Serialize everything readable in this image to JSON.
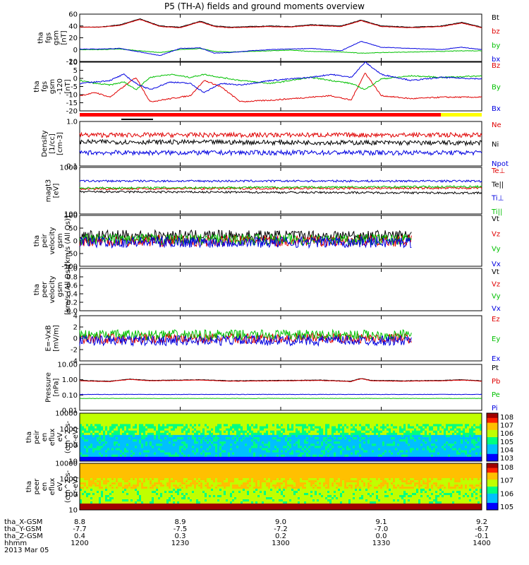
{
  "title": "P5 (TH-A) fields and ground moments overview",
  "date_label": "2013 Mar 05",
  "chart_data": [
    {
      "id": "fgs_gsm",
      "type": "line",
      "ylabel": [
        "tha",
        "fgs",
        "gsm",
        "[nT]"
      ],
      "ylim": [
        -20,
        60
      ],
      "yticks": [
        "60",
        "40",
        "20",
        "0",
        "-20"
      ],
      "series": [
        {
          "name": "Bt",
          "color": "#000000",
          "x": [
            12.0,
            12.1,
            12.2,
            12.3,
            12.4,
            12.5,
            12.6,
            12.67,
            12.75,
            12.85,
            12.95,
            13.05,
            13.15,
            13.3,
            13.4,
            13.5,
            13.65,
            13.8,
            13.9,
            14.0
          ],
          "y": [
            38,
            38,
            42,
            52,
            40,
            38,
            48,
            40,
            38,
            39,
            40,
            39,
            42,
            40,
            50,
            40,
            38,
            40,
            46,
            38
          ]
        },
        {
          "name": "bz",
          "color": "#e00000",
          "x": [
            12.0,
            12.1,
            12.2,
            12.3,
            12.4,
            12.5,
            12.6,
            12.67,
            12.75,
            12.85,
            12.95,
            13.05,
            13.15,
            13.3,
            13.4,
            13.5,
            13.65,
            13.8,
            13.9,
            14.0
          ],
          "y": [
            38,
            38,
            41,
            51,
            39,
            37,
            47,
            39,
            37,
            38,
            39,
            38,
            41,
            39,
            49,
            39,
            37,
            39,
            45,
            37
          ]
        },
        {
          "name": "by",
          "color": "#00c000",
          "x": [
            12.0,
            12.1,
            12.2,
            12.3,
            12.4,
            12.5,
            12.6,
            12.67,
            12.75,
            12.85,
            12.95,
            13.05,
            13.15,
            13.3,
            13.4,
            13.5,
            13.65,
            13.8,
            13.9,
            14.0
          ],
          "y": [
            0,
            0,
            1,
            -2,
            -5,
            0,
            2,
            -3,
            -4,
            -3,
            -2,
            -1,
            -3,
            -4,
            -6,
            -5,
            -4,
            -3,
            -2,
            -2
          ]
        },
        {
          "name": "bx",
          "color": "#0000e0",
          "x": [
            12.0,
            12.1,
            12.2,
            12.3,
            12.4,
            12.5,
            12.6,
            12.67,
            12.75,
            12.85,
            12.95,
            13.05,
            13.15,
            13.3,
            13.4,
            13.5,
            13.65,
            13.8,
            13.9,
            14.0
          ],
          "y": [
            1,
            1,
            2,
            -4,
            -10,
            2,
            3,
            -6,
            -5,
            -2,
            0,
            1,
            2,
            -2,
            14,
            4,
            2,
            0,
            4,
            0
          ]
        }
      ]
    },
    {
      "id": "fgs_gse",
      "type": "line",
      "ylabel": [
        "tha",
        "fgs",
        "gsm",
        "-120",
        "[nT]"
      ],
      "ylim": [
        -20,
        12
      ],
      "yticks": [
        "10",
        "5",
        "0",
        "-5",
        "-10",
        "-15",
        "-20"
      ],
      "series": [
        {
          "name": "Bz",
          "color": "#e00000",
          "x": [
            12.0,
            12.08,
            12.15,
            12.22,
            12.28,
            12.35,
            12.45,
            12.55,
            12.62,
            12.7,
            12.8,
            12.95,
            13.05,
            13.15,
            13.25,
            13.35,
            13.42,
            13.5,
            13.65,
            13.8,
            14.0
          ],
          "y": [
            -10,
            -8,
            -11,
            -4,
            2,
            -14,
            -12,
            -10,
            0,
            -4,
            -14,
            -13,
            -12,
            -11,
            -10,
            -13,
            5,
            -10,
            -12,
            -11,
            -11
          ]
        },
        {
          "name": "By",
          "color": "#00c000",
          "x": [
            12.0,
            12.08,
            12.15,
            12.22,
            12.28,
            12.35,
            12.45,
            12.55,
            12.62,
            12.7,
            12.8,
            12.95,
            13.05,
            13.15,
            13.25,
            13.35,
            13.42,
            13.5,
            13.65,
            13.8,
            14.0
          ],
          "y": [
            0,
            -2,
            -3,
            -1,
            -6,
            2,
            4,
            2,
            4,
            2,
            0,
            -2,
            0,
            2,
            0,
            -2,
            -6,
            1,
            3,
            2,
            3
          ]
        },
        {
          "name": "Bx",
          "color": "#0000e0",
          "x": [
            12.0,
            12.08,
            12.15,
            12.22,
            12.28,
            12.35,
            12.45,
            12.55,
            12.62,
            12.7,
            12.8,
            12.95,
            13.05,
            13.15,
            13.25,
            13.35,
            13.42,
            13.5,
            13.65,
            13.8,
            14.0
          ],
          "y": [
            -2,
            -1,
            0,
            4,
            -2,
            -6,
            -1,
            -2,
            -8,
            -2,
            -3,
            0,
            1,
            2,
            4,
            2,
            12,
            4,
            0,
            2,
            1
          ]
        }
      ]
    },
    {
      "id": "density",
      "type": "line",
      "ylabel": [
        "Density",
        "[1/cc]",
        "[cm-3]"
      ],
      "ylim": [
        0.1,
        1.0
      ],
      "log": true,
      "yticks": [
        "1.0",
        "0.1"
      ],
      "series": [
        {
          "name": "Ne",
          "color": "#e00000",
          "x": [
            12.0,
            14.0
          ],
          "y": [
            0.5,
            0.5
          ]
        },
        {
          "name": "Ni",
          "color": "#000000",
          "x": [
            12.0,
            14.0
          ],
          "y": [
            0.35,
            0.33
          ]
        },
        {
          "name": "Npot",
          "color": "#0000e0",
          "x": [
            12.0,
            14.0
          ],
          "y": [
            0.2,
            0.2
          ]
        }
      ]
    },
    {
      "id": "temp",
      "type": "line",
      "ylabel": [
        "magt3",
        "[eV]"
      ],
      "ylim": [
        100,
        10000
      ],
      "log": true,
      "yticks": [
        "1000",
        "100"
      ],
      "series": [
        {
          "name": "Te⊥",
          "color": "#e00000",
          "x": [
            12.0,
            14.0
          ],
          "y": [
            1200,
            1300
          ]
        },
        {
          "name": "Te||",
          "color": "#000000",
          "x": [
            12.0,
            14.0
          ],
          "y": [
            900,
            800
          ]
        },
        {
          "name": "Ti⊥",
          "color": "#0000e0",
          "x": [
            12.0,
            14.0
          ],
          "y": [
            2600,
            2600
          ]
        },
        {
          "name": "Ti||",
          "color": "#00c000",
          "x": [
            12.0,
            14.0
          ],
          "y": [
            1300,
            1500
          ]
        }
      ]
    },
    {
      "id": "peir_vel",
      "type": "line",
      "ylabel": [
        "tha",
        "peir",
        "velocity",
        "gsm",
        "[km/s (All Qs)]"
      ],
      "ylim": [
        -100,
        100
      ],
      "yticks": [
        "100",
        "50",
        "0",
        "-50",
        "-100"
      ],
      "series": [
        {
          "name": "Vt",
          "color": "#000000",
          "x": [
            12.0,
            13.65
          ],
          "y": [
            20,
            20
          ]
        },
        {
          "name": "Vz",
          "color": "#e00000",
          "x": [
            12.0,
            13.65
          ],
          "y": [
            0,
            0
          ]
        },
        {
          "name": "Vy",
          "color": "#00c000",
          "x": [
            12.0,
            13.65
          ],
          "y": [
            5,
            5
          ]
        },
        {
          "name": "Vx",
          "color": "#0000e0",
          "x": [
            12.0,
            13.65
          ],
          "y": [
            -5,
            -5
          ]
        }
      ]
    },
    {
      "id": "peer_vel",
      "type": "line",
      "ylabel": [
        "tha",
        "peer",
        "velocity",
        "gsm",
        "[km/s (All Qs)]"
      ],
      "ylim": [
        0,
        1
      ],
      "yticks": [
        "1.0",
        "0.8",
        "0.6",
        "0.4",
        "0.2",
        "0.0"
      ],
      "series": [
        {
          "name": "Vt",
          "color": "#000000",
          "x": [],
          "y": []
        },
        {
          "name": "Vz",
          "color": "#e00000",
          "x": [],
          "y": []
        },
        {
          "name": "Vy",
          "color": "#00c000",
          "x": [],
          "y": []
        },
        {
          "name": "Vx",
          "color": "#0000e0",
          "x": [],
          "y": []
        }
      ]
    },
    {
      "id": "efield",
      "type": "line",
      "ylabel": [
        "E=-VxB",
        "[mV/m]"
      ],
      "ylim": [
        -4,
        4
      ],
      "yticks": [
        "4",
        "2",
        "0",
        "-2",
        "-4"
      ],
      "series": [
        {
          "name": "Ez",
          "color": "#e00000",
          "x": [
            12.0,
            13.65
          ],
          "y": [
            0,
            0
          ]
        },
        {
          "name": "Ey",
          "color": "#00c000",
          "x": [
            12.0,
            13.65
          ],
          "y": [
            0.6,
            0.6
          ]
        },
        {
          "name": "Ex",
          "color": "#0000e0",
          "x": [
            12.0,
            13.65
          ],
          "y": [
            -0.4,
            -0.4
          ]
        }
      ]
    },
    {
      "id": "pressure",
      "type": "line",
      "ylabel": [
        "Pressure",
        "[nPa]"
      ],
      "ylim": [
        0.01,
        10
      ],
      "log": true,
      "yticks": [
        "10.00",
        "1.00",
        "0.10",
        "0.01"
      ],
      "series": [
        {
          "name": "Pt",
          "color": "#000000",
          "x": [
            12.0,
            12.15,
            12.25,
            12.35,
            12.6,
            12.75,
            13.0,
            13.2,
            13.35,
            13.4,
            13.45,
            13.6,
            13.8,
            13.9,
            14.0
          ],
          "y": [
            0.9,
            0.8,
            1.1,
            0.9,
            1.0,
            0.85,
            0.9,
            0.95,
            0.8,
            1.2,
            0.9,
            0.85,
            0.9,
            1.0,
            0.85
          ]
        },
        {
          "name": "Pb",
          "color": "#e00000",
          "x": [
            12.0,
            12.15,
            12.25,
            12.35,
            12.6,
            12.75,
            13.0,
            13.2,
            13.35,
            13.4,
            13.45,
            13.6,
            13.8,
            13.9,
            14.0
          ],
          "y": [
            0.85,
            0.75,
            1.05,
            0.85,
            0.95,
            0.8,
            0.85,
            0.9,
            0.75,
            1.15,
            0.85,
            0.8,
            0.85,
            0.95,
            0.8
          ]
        },
        {
          "name": "Pe",
          "color": "#00c000",
          "x": [
            12.0,
            14.0
          ],
          "y": [
            0.06,
            0.06
          ]
        },
        {
          "name": "Pi",
          "color": "#0000e0",
          "x": [
            12.0,
            14.0
          ],
          "y": [
            0.11,
            0.11
          ]
        }
      ]
    },
    {
      "id": "peir_eflux",
      "type": "heatmap",
      "ylabel": [
        "tha",
        "peir",
        "en",
        "eflux",
        "eV",
        "(cm^2-s-",
        "sr-eV)"
      ],
      "ylim": [
        10,
        20000
      ],
      "log": true,
      "yticks": [
        "10000",
        "1000",
        "100",
        "10"
      ],
      "colorbar": {
        "ticks": [
          "10^8",
          "10^7",
          "10^6",
          "10^5",
          "10^4",
          "10^3"
        ]
      }
    },
    {
      "id": "peer_eflux",
      "type": "heatmap",
      "ylabel": [
        "tha",
        "peer",
        "en",
        "eflux",
        "eV",
        "(cm^2-s-",
        "sr-eV)"
      ],
      "ylim": [
        10,
        20000
      ],
      "log": true,
      "yticks": [
        "10000",
        "1000",
        "100",
        "10"
      ],
      "colorbar": {
        "ticks": [
          "10^8",
          "10^7",
          "10^6",
          "10^5"
        ]
      }
    }
  ],
  "footer": {
    "rows": [
      {
        "label": "tha_X-GSM",
        "values": [
          "8.8",
          "8.9",
          "9.0",
          "9.1",
          "9.2"
        ]
      },
      {
        "label": "tha_Y-GSM",
        "values": [
          "-7.7",
          "-7.5",
          "-7.2",
          "-7.0",
          "-6.7"
        ]
      },
      {
        "label": "tha_Z-GSM",
        "values": [
          "0.4",
          "0.3",
          "0.2",
          "0.0",
          "-0.1"
        ]
      },
      {
        "label": "hhmm",
        "values": [
          "1200",
          "1230",
          "1300",
          "1330",
          "1400"
        ]
      }
    ]
  }
}
